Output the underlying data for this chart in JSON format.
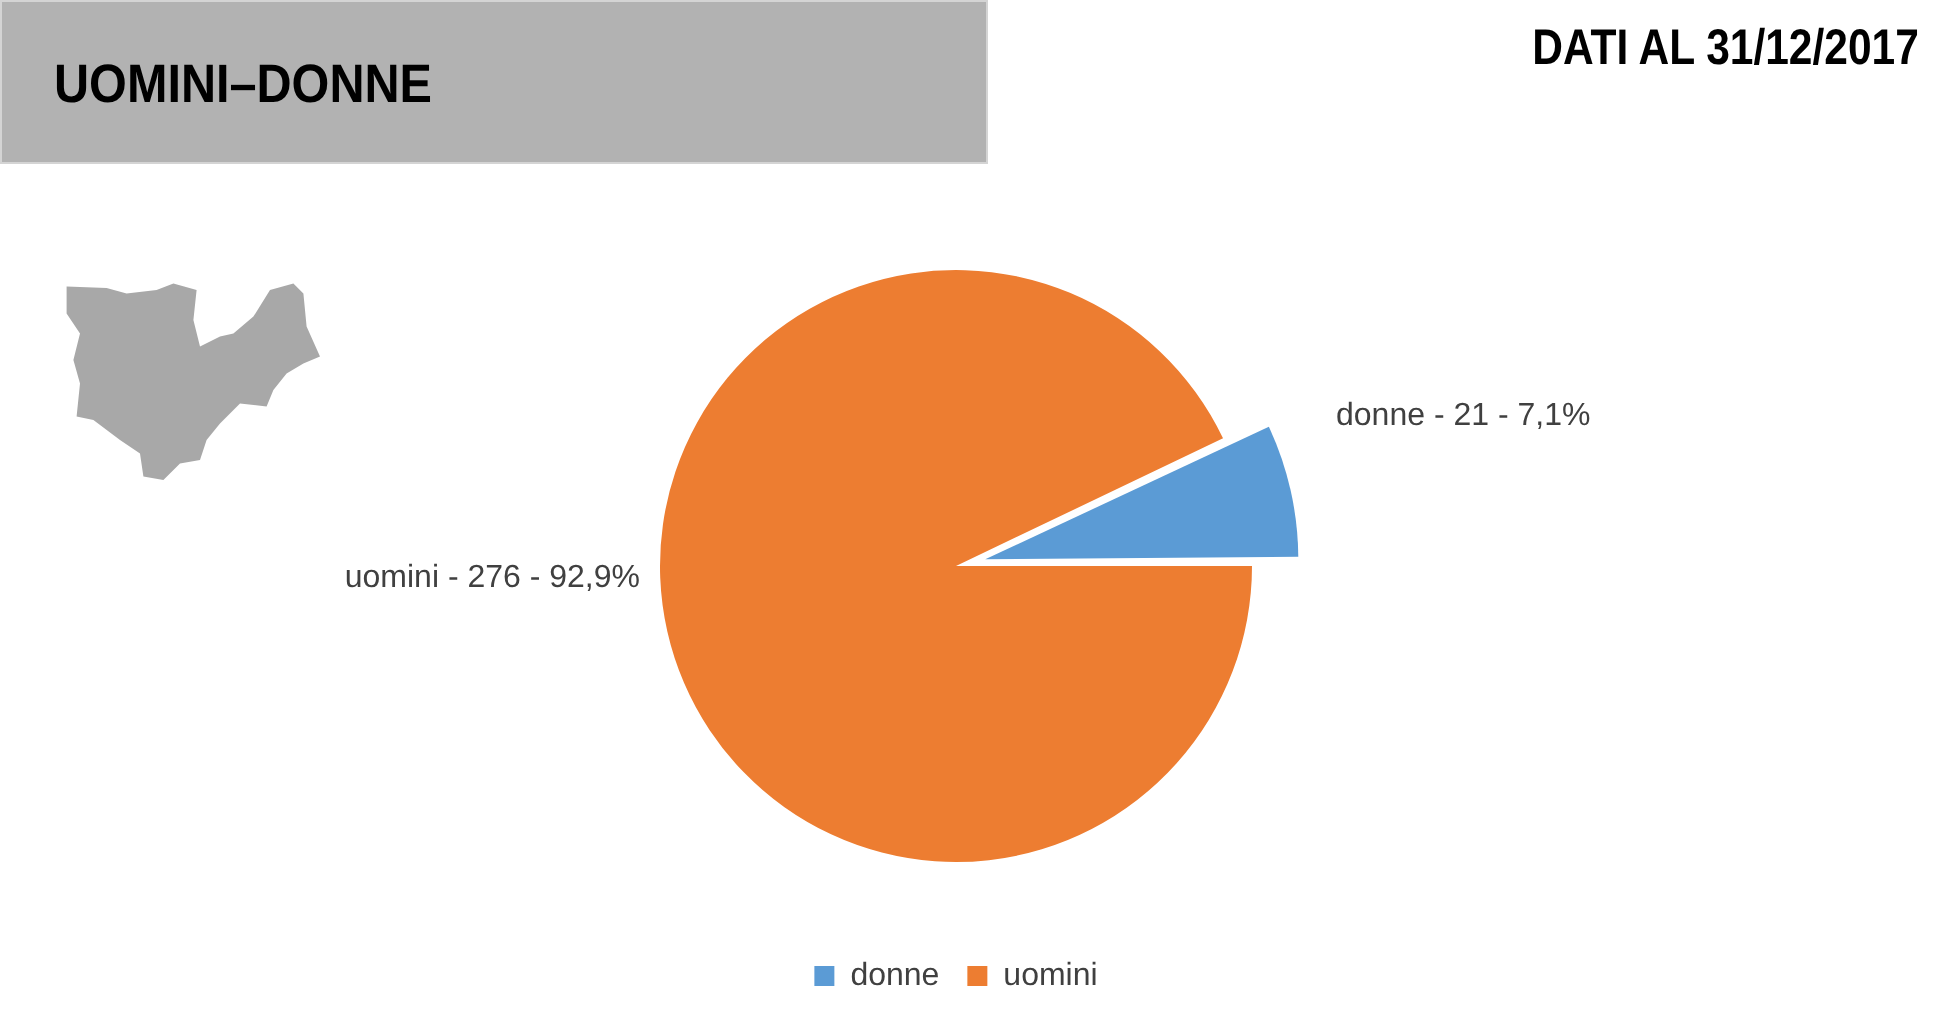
{
  "chart_data": {
    "type": "pie",
    "title": "UOMINI–DONNE",
    "subtitle": "DATI AL 31/12/2017",
    "categories": [
      "donne",
      "uomini"
    ],
    "values": [
      7.1,
      92.9
    ],
    "colors": [
      "#5b9bd5",
      "#ed7d31"
    ],
    "annotations": [
      "donne - 21 - 7,1%",
      "uomini - 276 - 92,9%"
    ],
    "legend": "bottom"
  }
}
